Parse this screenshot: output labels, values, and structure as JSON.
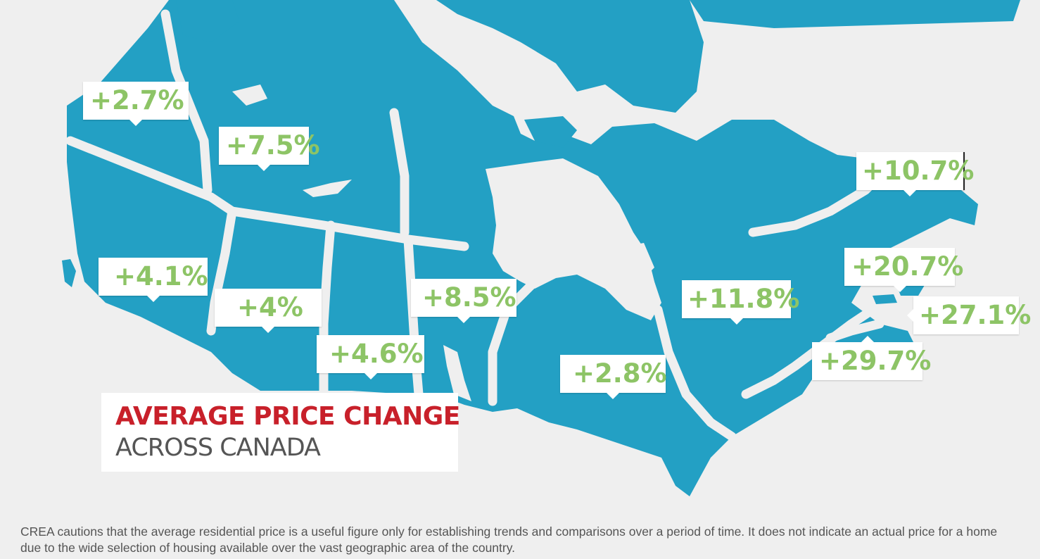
{
  "colors": {
    "background": "#efefef",
    "land": "#23a0c4",
    "border": "#efefef",
    "callout_bg": "#ffffff",
    "callout_text": "#8dc466",
    "title_accent": "#c8202a",
    "title_secondary": "#555555"
  },
  "title": {
    "line1": "AVERAGE PRICE CHANGE",
    "line2": "ACROSS CANADA"
  },
  "regions": {
    "yukon": "+2.7%",
    "northwest_territories": "+7.5%",
    "british_columbia": "+4.1%",
    "alberta": "+4%",
    "saskatchewan": "+4.6%",
    "manitoba": "+8.5%",
    "ontario": "+2.8%",
    "quebec": "+11.8%",
    "newfoundland_labrador": "+10.7%",
    "new_brunswick": "+20.7%",
    "prince_edward_island": "+27.1%",
    "nova_scotia": "+29.7%"
  },
  "footnote": "CREA cautions that the average residential price is a useful figure only for establishing trends and comparisons over a period of time. It does not indicate an actual price for a home due to the wide selection of housing available over the vast geographic area of the country."
}
